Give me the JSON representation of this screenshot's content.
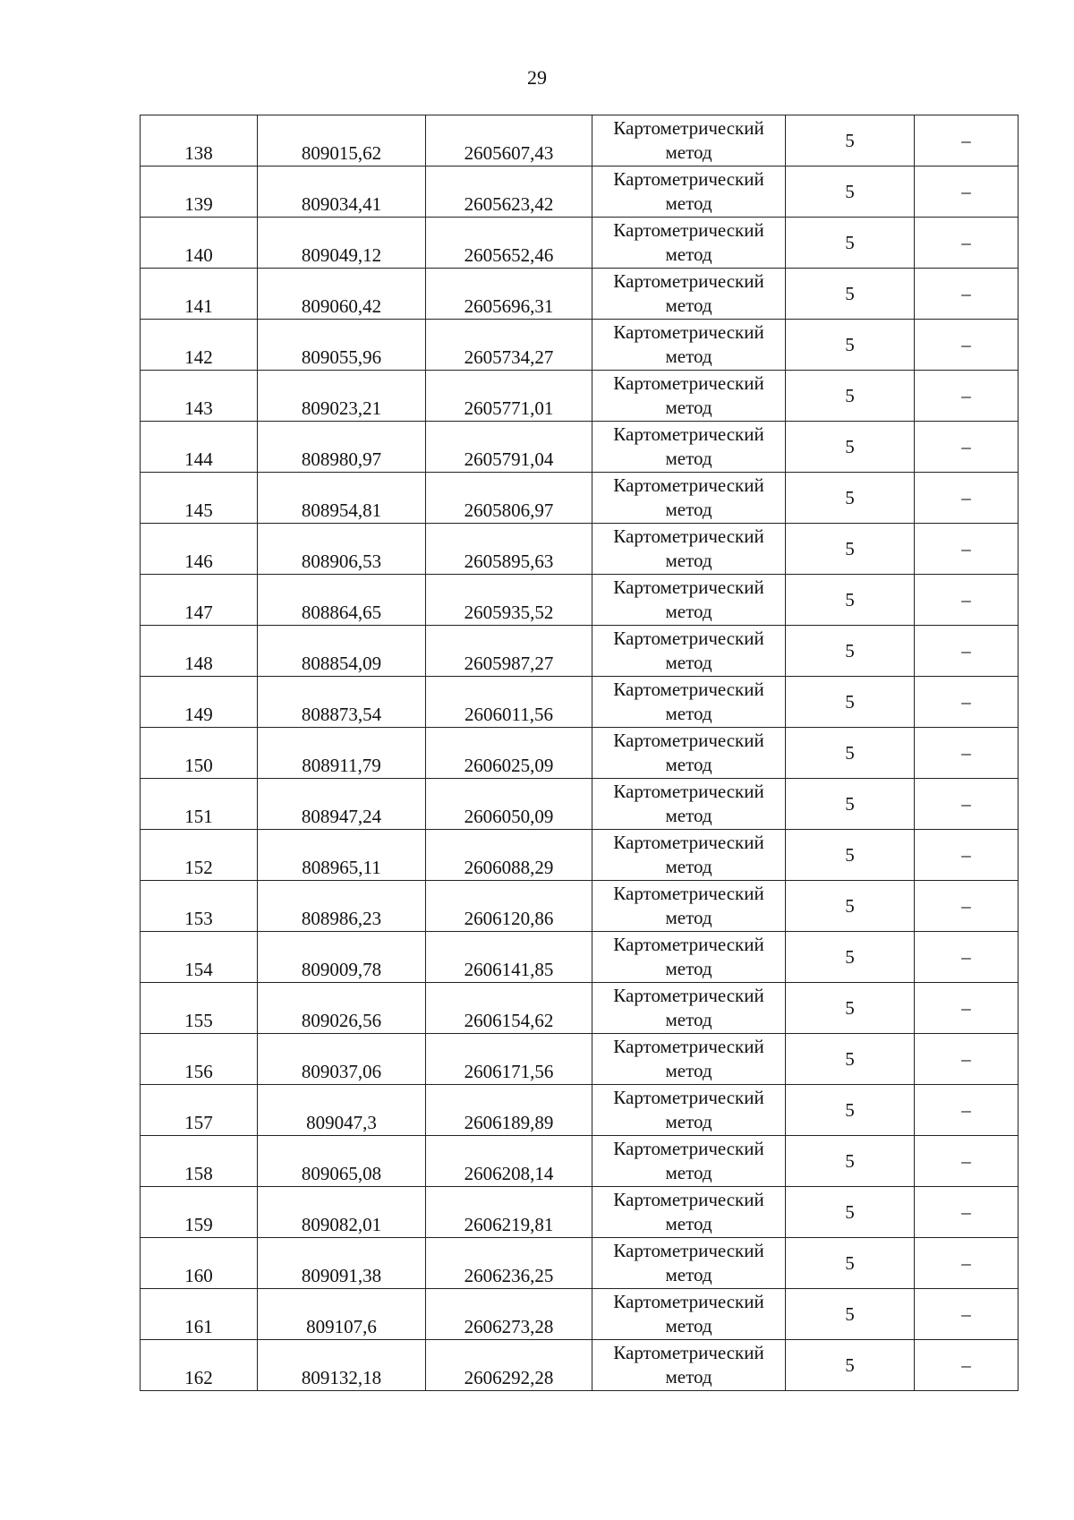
{
  "page_number": "29",
  "rows": [
    {
      "n": "138",
      "x": "809015,62",
      "y": "2605607,43",
      "method": "Картометрический метод",
      "accuracy": "5",
      "note": "–"
    },
    {
      "n": "139",
      "x": "809034,41",
      "y": "2605623,42",
      "method": "Картометрический метод",
      "accuracy": "5",
      "note": "–"
    },
    {
      "n": "140",
      "x": "809049,12",
      "y": "2605652,46",
      "method": "Картометрический метод",
      "accuracy": "5",
      "note": "–"
    },
    {
      "n": "141",
      "x": "809060,42",
      "y": "2605696,31",
      "method": "Картометрический метод",
      "accuracy": "5",
      "note": "–"
    },
    {
      "n": "142",
      "x": "809055,96",
      "y": "2605734,27",
      "method": "Картометрический метод",
      "accuracy": "5",
      "note": "–"
    },
    {
      "n": "143",
      "x": "809023,21",
      "y": "2605771,01",
      "method": "Картометрический метод",
      "accuracy": "5",
      "note": "–"
    },
    {
      "n": "144",
      "x": "808980,97",
      "y": "2605791,04",
      "method": "Картометрический метод",
      "accuracy": "5",
      "note": "–"
    },
    {
      "n": "145",
      "x": "808954,81",
      "y": "2605806,97",
      "method": "Картометрический метод",
      "accuracy": "5",
      "note": "–"
    },
    {
      "n": "146",
      "x": "808906,53",
      "y": "2605895,63",
      "method": "Картометрический метод",
      "accuracy": "5",
      "note": "–"
    },
    {
      "n": "147",
      "x": "808864,65",
      "y": "2605935,52",
      "method": "Картометрический метод",
      "accuracy": "5",
      "note": "–"
    },
    {
      "n": "148",
      "x": "808854,09",
      "y": "2605987,27",
      "method": "Картометрический метод",
      "accuracy": "5",
      "note": "–"
    },
    {
      "n": "149",
      "x": "808873,54",
      "y": "2606011,56",
      "method": "Картометрический метод",
      "accuracy": "5",
      "note": "–"
    },
    {
      "n": "150",
      "x": "808911,79",
      "y": "2606025,09",
      "method": "Картометрический метод",
      "accuracy": "5",
      "note": "–"
    },
    {
      "n": "151",
      "x": "808947,24",
      "y": "2606050,09",
      "method": "Картометрический метод",
      "accuracy": "5",
      "note": "–"
    },
    {
      "n": "152",
      "x": "808965,11",
      "y": "2606088,29",
      "method": "Картометрический метод",
      "accuracy": "5",
      "note": "–"
    },
    {
      "n": "153",
      "x": "808986,23",
      "y": "2606120,86",
      "method": "Картометрический метод",
      "accuracy": "5",
      "note": "–"
    },
    {
      "n": "154",
      "x": "809009,78",
      "y": "2606141,85",
      "method": "Картометрический метод",
      "accuracy": "5",
      "note": "–"
    },
    {
      "n": "155",
      "x": "809026,56",
      "y": "2606154,62",
      "method": "Картометрический метод",
      "accuracy": "5",
      "note": "–"
    },
    {
      "n": "156",
      "x": "809037,06",
      "y": "2606171,56",
      "method": "Картометрический метод",
      "accuracy": "5",
      "note": "–"
    },
    {
      "n": "157",
      "x": "809047,3",
      "y": "2606189,89",
      "method": "Картометрический метод",
      "accuracy": "5",
      "note": "–"
    },
    {
      "n": "158",
      "x": "809065,08",
      "y": "2606208,14",
      "method": "Картометрический метод",
      "accuracy": "5",
      "note": "–"
    },
    {
      "n": "159",
      "x": "809082,01",
      "y": "2606219,81",
      "method": "Картометрический метод",
      "accuracy": "5",
      "note": "–"
    },
    {
      "n": "160",
      "x": "809091,38",
      "y": "2606236,25",
      "method": "Картометрический метод",
      "accuracy": "5",
      "note": "–"
    },
    {
      "n": "161",
      "x": "809107,6",
      "y": "2606273,28",
      "method": "Картометрический метод",
      "accuracy": "5",
      "note": "–"
    },
    {
      "n": "162",
      "x": "809132,18",
      "y": "2606292,28",
      "method": "Картометрический метод",
      "accuracy": "5",
      "note": "–"
    }
  ]
}
